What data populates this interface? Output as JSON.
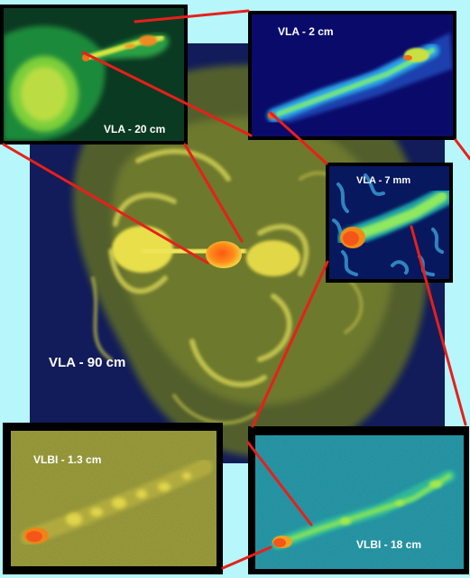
{
  "labels": {
    "vla_90cm": "VLA - 90 cm",
    "vla_20cm": "VLA - 20 cm",
    "vla_2cm": "VLA - 2 cm",
    "vla_7mm": "VLA - 7 mm",
    "vlbi_1_3cm": "VLBI - 1.3 cm",
    "vlbi_18cm": "VLBI - 18 cm"
  },
  "colors": {
    "background": "#b7f7fb",
    "frame": "#000000",
    "connector": "#e81f1a",
    "label": "#ffffff",
    "main_field": "#121c5a"
  },
  "icons": {
    "main": "radio-galaxy-lobes-image",
    "vla_20cm": "radio-lobe-jet-image",
    "vla_2cm": "radio-jet-image",
    "vla_7mm": "radio-core-jet-image",
    "vlbi_1_3cm": "vlbi-core-jet-image",
    "vlbi_18cm": "vlbi-jet-image"
  }
}
